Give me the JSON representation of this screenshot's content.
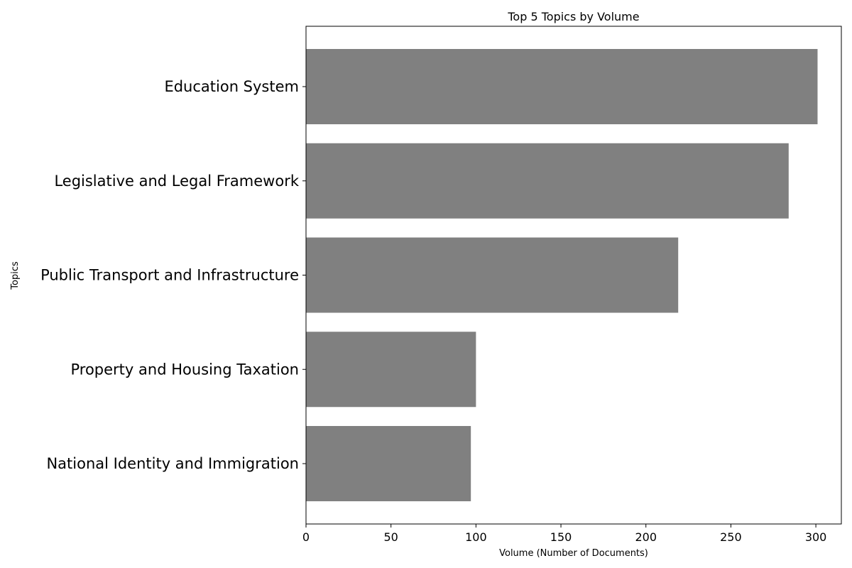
{
  "chart_data": {
    "type": "bar",
    "orientation": "horizontal",
    "title": "Top 5 Topics by Volume",
    "xlabel": "Volume (Number of Documents)",
    "ylabel": "Topics",
    "categories": [
      "Education System",
      "Legislative and Legal Framework",
      "Public Transport and Infrastructure",
      "Property and Housing Taxation",
      "National Identity and Immigration"
    ],
    "values": [
      301,
      284,
      219,
      100,
      97
    ],
    "xlim": [
      0,
      315
    ],
    "xticks": [
      "0",
      "50",
      "100",
      "150",
      "200",
      "250",
      "300"
    ],
    "bar_color": "#808080",
    "grid": false,
    "legend": "none"
  }
}
